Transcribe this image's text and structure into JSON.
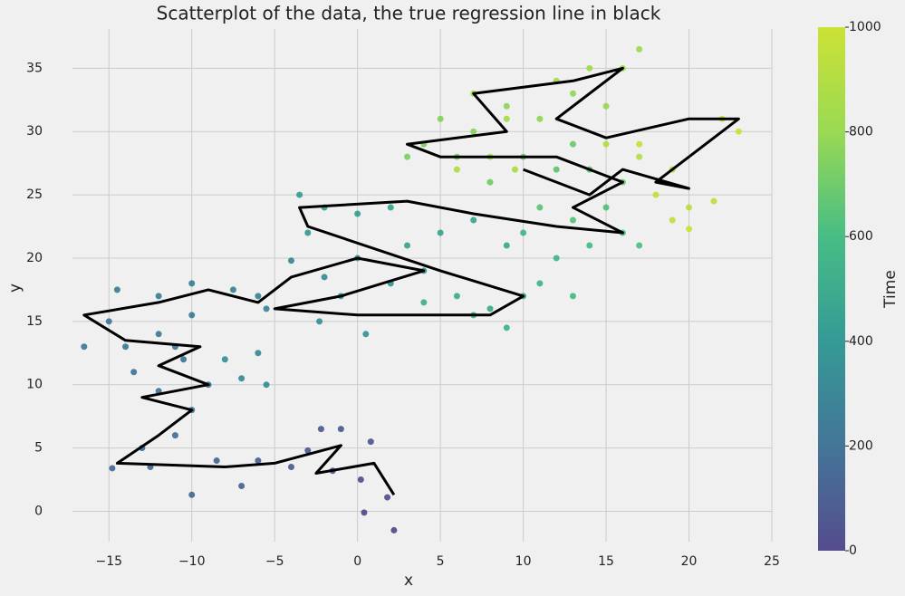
{
  "chart_data": {
    "type": "scatter",
    "title": "Scatterplot of the data, the true regression line in black",
    "xlabel": "x",
    "ylabel": "y",
    "xlim": [
      -17.2,
      25
    ],
    "ylim": [
      -2.4,
      38.1
    ],
    "xticks": [
      {
        "value": -15,
        "label": "−15"
      },
      {
        "value": -10,
        "label": "−10"
      },
      {
        "value": -5,
        "label": "−5"
      },
      0,
      5,
      10,
      15,
      20,
      25
    ],
    "yticks": [
      0,
      5,
      10,
      15,
      20,
      25,
      30,
      35
    ],
    "grid": true,
    "points": {
      "x": [
        2.2,
        0.4,
        1.8,
        0.2,
        -1.5,
        0.8,
        -3,
        -2.2,
        -1,
        -4,
        -6,
        -7,
        -8.5,
        -10,
        -12.5,
        -14.8,
        -13,
        -11,
        -10,
        -12,
        -13.5,
        -10.5,
        -9,
        -11,
        -14,
        -16.5,
        -15,
        -12,
        -10,
        -14.5,
        -12,
        -10,
        -7.5,
        -6,
        -5.5,
        -4,
        -6,
        -5.5,
        -7,
        -8,
        -2,
        0,
        -2.3,
        0.5,
        2,
        4,
        -1,
        -3,
        -2,
        -3.5,
        0,
        2,
        3,
        5,
        7,
        9,
        10,
        8,
        6,
        4,
        9,
        7,
        11,
        12,
        10,
        13,
        14,
        16,
        17,
        15,
        13,
        11,
        12,
        14,
        16,
        13,
        10,
        8,
        6,
        4,
        3,
        5,
        7,
        9,
        11,
        13,
        15,
        16,
        17,
        14,
        12,
        9,
        7,
        8,
        9.5,
        6,
        15,
        17,
        19,
        20,
        21.5,
        19,
        18,
        17,
        22,
        23,
        20
      ],
      "y": [
        -1.5,
        -0.1,
        1.1,
        2.5,
        3.2,
        5.5,
        4.8,
        6.5,
        6.5,
        3.5,
        4,
        2,
        4,
        1.3,
        3.5,
        3.4,
        5,
        6,
        8,
        9.5,
        11,
        12,
        10,
        13,
        13,
        13,
        15,
        14,
        15.5,
        17.5,
        17,
        18,
        17.5,
        17,
        16,
        19.8,
        12.5,
        10,
        10.5,
        12,
        18.5,
        20,
        15,
        14,
        18,
        19,
        17,
        22,
        24,
        25,
        23.5,
        24,
        21,
        22,
        23,
        21,
        17,
        16,
        17,
        16.5,
        14.5,
        15.5,
        18,
        20,
        22,
        17,
        21,
        22,
        21,
        24,
        23,
        24,
        27,
        27,
        26,
        29,
        28,
        26,
        28,
        29,
        28,
        31,
        30,
        32,
        31,
        33,
        32,
        35,
        36.5,
        35,
        34,
        31,
        33,
        28,
        27,
        27,
        29,
        28,
        27,
        24,
        24.5,
        23,
        25,
        29,
        31,
        30,
        22.3
      ],
      "color_values": [
        5,
        15,
        30,
        45,
        60,
        70,
        80,
        90,
        95,
        100,
        110,
        120,
        130,
        140,
        150,
        160,
        170,
        180,
        190,
        200,
        205,
        210,
        215,
        220,
        225,
        230,
        235,
        240,
        245,
        250,
        260,
        270,
        280,
        290,
        300,
        310,
        320,
        330,
        335,
        340,
        350,
        360,
        365,
        370,
        380,
        390,
        400,
        410,
        420,
        430,
        440,
        450,
        460,
        470,
        480,
        490,
        500,
        510,
        520,
        530,
        540,
        550,
        560,
        570,
        580,
        590,
        600,
        610,
        620,
        630,
        640,
        650,
        660,
        670,
        680,
        690,
        700,
        710,
        720,
        730,
        740,
        750,
        760,
        770,
        780,
        790,
        800,
        810,
        820,
        830,
        840,
        850,
        860,
        870,
        880,
        890,
        900,
        910,
        920,
        930,
        940,
        950,
        960,
        970,
        980,
        990,
        1000
      ]
    },
    "line": {
      "color": "#000000",
      "x": [
        2.2,
        1,
        -2.5,
        -1,
        -5,
        -8,
        -14.5,
        -12,
        -10,
        -13,
        -9,
        -12,
        -9.5,
        -14,
        -16.5,
        -12,
        -9,
        -6,
        -4,
        0,
        4,
        -1,
        -5,
        0,
        8,
        10,
        5,
        -3,
        -3.5,
        3,
        7,
        12,
        16,
        13,
        16,
        12,
        5,
        3,
        9,
        7,
        13,
        16,
        12,
        15,
        20,
        23,
        18,
        20,
        16,
        14,
        10
      ],
      "y": [
        1.3,
        3.8,
        3,
        5.2,
        3.8,
        3.5,
        3.8,
        6,
        8,
        9,
        10,
        11.5,
        13,
        13.5,
        15.5,
        16.5,
        17.5,
        16.5,
        18.5,
        20,
        19,
        17,
        16,
        15.5,
        15.5,
        17,
        19,
        22.5,
        24,
        24.5,
        23.5,
        22.5,
        22,
        24,
        26,
        28,
        28,
        29,
        30,
        33,
        34,
        35,
        31,
        29.5,
        31,
        31,
        26,
        25.5,
        27,
        25,
        27
      ]
    },
    "colorbar": {
      "label": "Time",
      "lim": [
        0,
        1000
      ],
      "ticks": [
        0,
        200,
        400,
        600,
        800,
        1000
      ],
      "colormap": [
        "#443a83",
        "#31688e",
        "#21918c",
        "#35b779",
        "#90d743",
        "#c8e020"
      ]
    }
  }
}
